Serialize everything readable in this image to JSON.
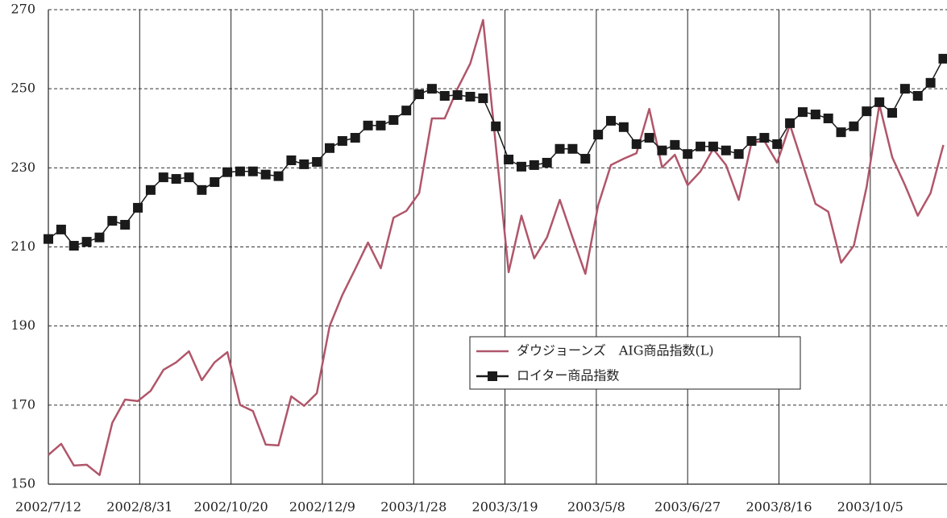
{
  "chart_data": {
    "type": "line",
    "x": [
      "2002/7/12",
      "2002/7/19",
      "2002/7/26",
      "2002/8/2",
      "2002/8/9",
      "2002/8/16",
      "2002/8/23",
      "2002/8/30",
      "2002/9/6",
      "2002/9/13",
      "2002/9/20",
      "2002/9/27",
      "2002/10/4",
      "2002/10/11",
      "2002/10/18",
      "2002/10/25",
      "2002/11/1",
      "2002/11/8",
      "2002/11/15",
      "2002/11/22",
      "2002/11/29",
      "2002/12/6",
      "2002/12/13",
      "2002/12/20",
      "2002/12/27",
      "2003/1/3",
      "2003/1/10",
      "2003/1/17",
      "2003/1/24",
      "2003/1/31",
      "2003/2/7",
      "2003/2/14",
      "2003/2/21",
      "2003/2/28",
      "2003/3/7",
      "2003/3/14",
      "2003/3/21",
      "2003/3/28",
      "2003/4/4",
      "2003/4/11",
      "2003/4/18",
      "2003/4/25",
      "2003/5/2",
      "2003/5/9",
      "2003/5/16",
      "2003/5/23",
      "2003/5/30",
      "2003/6/6",
      "2003/6/13",
      "2003/6/20",
      "2003/6/27",
      "2003/7/4",
      "2003/7/11",
      "2003/7/18",
      "2003/7/25",
      "2003/8/1",
      "2003/8/8",
      "2003/8/15",
      "2003/8/22",
      "2003/8/29",
      "2003/9/5",
      "2003/9/12",
      "2003/9/19",
      "2003/9/26",
      "2003/10/3",
      "2003/10/10",
      "2003/10/17",
      "2003/10/24",
      "2003/10/31",
      "2003/11/7",
      "2003/11/14"
    ],
    "series": [
      {
        "name": "ダウジョーンズ　AIG商品指数(L)",
        "color": "#b0566a",
        "marker": false,
        "values": [
          157.4,
          160.2,
          154.7,
          154.9,
          152.3,
          165.5,
          171.4,
          171.0,
          173.6,
          178.9,
          180.8,
          183.6,
          176.3,
          180.8,
          183.4,
          170.0,
          168.5,
          160.0,
          159.8,
          172.2,
          169.8,
          173.0,
          190.0,
          197.9,
          204.4,
          211.1,
          204.6,
          217.4,
          219.1,
          223.6,
          242.5,
          242.5,
          250,
          256.4,
          267.4,
          235.6,
          203.6,
          217.9,
          207.1,
          212.4,
          221.9,
          212.4,
          203.2,
          220.5,
          230.7,
          232.3,
          233.7,
          244.9,
          230.1,
          233.3,
          225.6,
          229.1,
          234.8,
          230.7,
          221.9,
          236.4,
          236.8,
          231.3,
          240.9,
          230.9,
          220.9,
          218.9,
          206.0,
          210.3,
          225.2,
          246.0,
          232.7,
          225.6,
          217.9,
          223.6,
          235.8
        ]
      },
      {
        "name": "ロイター商品指数",
        "color": "#1a1a1a",
        "marker": true,
        "values": [
          212,
          214.4,
          210.3,
          211.3,
          212.4,
          216.6,
          215.6,
          219.9,
          224.4,
          227.6,
          227.2,
          227.6,
          224.4,
          226.4,
          228.9,
          229.1,
          229.1,
          228.3,
          227.9,
          231.9,
          230.9,
          231.5,
          235.0,
          236.8,
          237.6,
          240.7,
          240.7,
          242.1,
          244.5,
          248.6,
          250,
          248.2,
          248.4,
          248.0,
          247.6,
          240.5,
          232.1,
          230.3,
          230.7,
          231.3,
          234.8,
          234.8,
          232.3,
          238.4,
          241.9,
          240.3,
          236.0,
          237.6,
          234.4,
          235.8,
          233.5,
          235.4,
          235.4,
          234.4,
          233.5,
          236.8,
          237.6,
          236.0,
          241.3,
          244.1,
          243.5,
          242.5,
          239.0,
          240.5,
          244.3,
          246.6,
          243.9,
          250,
          248.2,
          251.5,
          257.6
        ]
      }
    ],
    "xlim": [
      "2002/7/12",
      "2003/11/16"
    ],
    "xticks": [
      "2002/7/12",
      "2002/8/31",
      "2002/10/20",
      "2002/12/9",
      "2003/1/28",
      "2003/3/19",
      "2003/5/8",
      "2003/6/27",
      "2003/8/16",
      "2003/10/5"
    ],
    "ylim": [
      150,
      270
    ],
    "yticks": [
      150,
      170,
      190,
      210,
      230,
      250,
      270
    ],
    "grid": true,
    "legend": "lower right"
  }
}
